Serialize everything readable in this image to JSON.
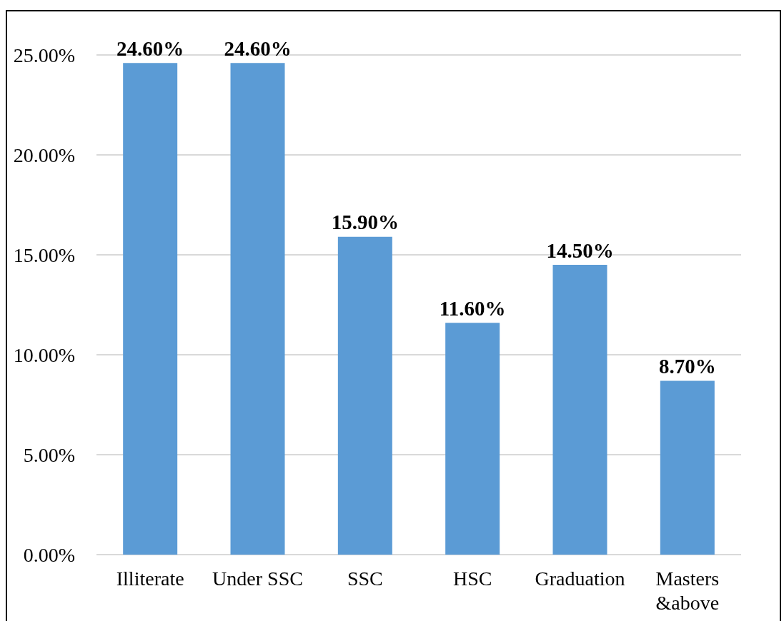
{
  "chart_data": {
    "type": "bar",
    "categories": [
      "Illiterate",
      "Under SSC",
      "SSC",
      "HSC",
      "Graduation",
      "Masters &above"
    ],
    "values": [
      24.6,
      24.6,
      15.9,
      11.6,
      14.5,
      8.7
    ],
    "value_labels": [
      "24.60%",
      "24.60%",
      "15.90%",
      "11.60%",
      "14.50%",
      "8.70%"
    ],
    "color": "#5b9bd5",
    "ylim": [
      0,
      25
    ],
    "yticks": [
      {
        "value": 0,
        "label": "0.00%"
      },
      {
        "value": 5,
        "label": "5.00%"
      },
      {
        "value": 10,
        "label": "10.00%"
      },
      {
        "value": 15,
        "label": "15.00%"
      },
      {
        "value": 20,
        "label": "20.00%"
      },
      {
        "value": 25,
        "label": "25.00%"
      }
    ],
    "grid": "y"
  }
}
